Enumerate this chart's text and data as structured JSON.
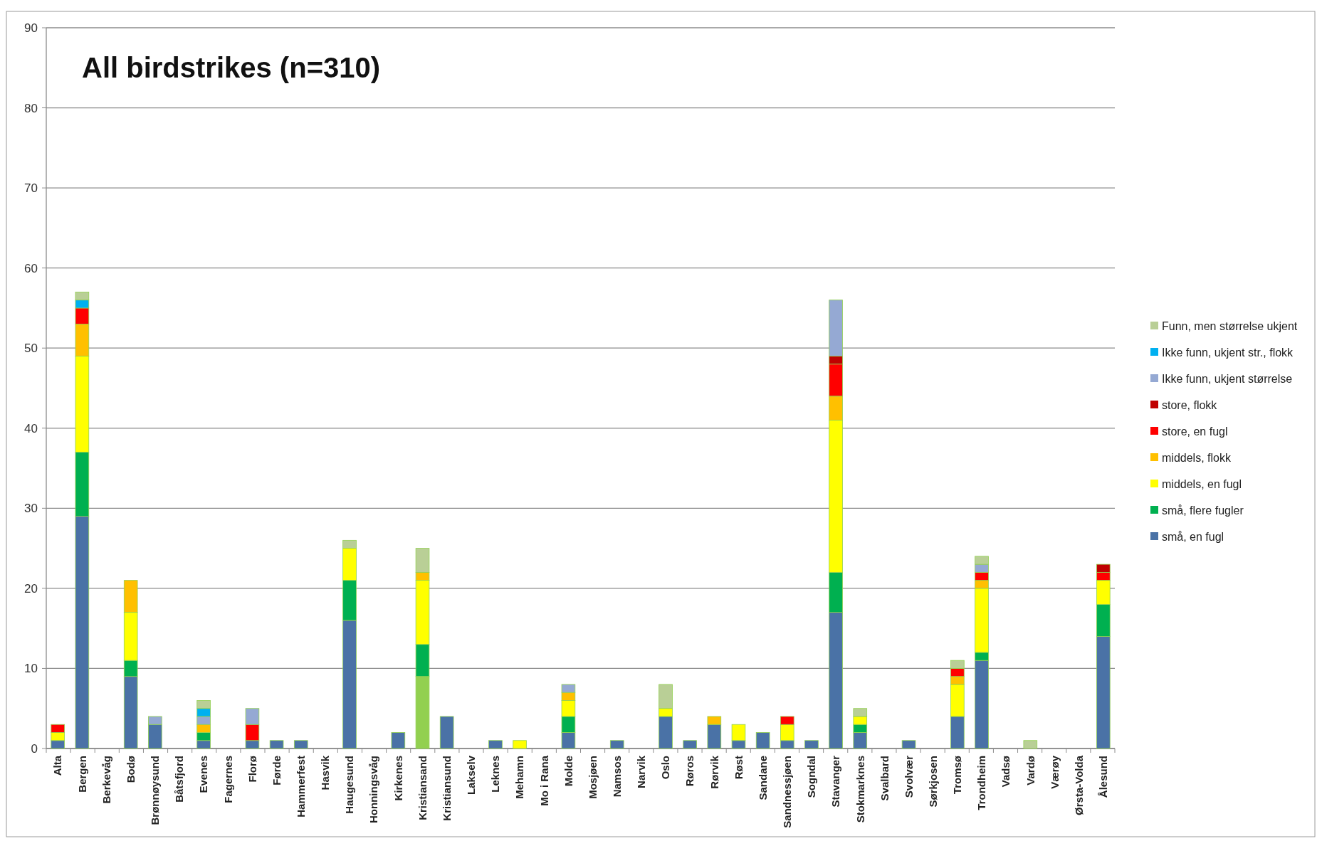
{
  "chart_data": {
    "type": "bar",
    "stacked": true,
    "title": "All birdstrikes (n=310)",
    "categories": [
      "Alta",
      "Bergen",
      "Berkevåg",
      "Bodø",
      "Brønnøysund",
      "Båtsfjord",
      "Evenes",
      "Fagernes",
      "Florø",
      "Førde",
      "Hammerfest",
      "Hasvik",
      "Haugesund",
      "Honningsvåg",
      "Kirkenes",
      "Kristiansand",
      "Kristiansund",
      "Lakselv",
      "Leknes",
      "Mehamn",
      "Mo i Rana",
      "Molde",
      "Mosjøen",
      "Namsos",
      "Narvik",
      "Oslo",
      "Røros",
      "Rørvik",
      "Røst",
      "Sandane",
      "Sandnessjøen",
      "Sogndal",
      "Stavanger",
      "Stokmarknes",
      "Svalbard",
      "Svolvær",
      "Sørkjosen",
      "Tromsø",
      "Trondheim",
      "Vadsø",
      "Vardø",
      "Værøy",
      "Ørsta-Volda",
      "Ålesund"
    ],
    "series": [
      {
        "name": "små, en fugl",
        "color": "#4a72a6",
        "colors": [
          "#4a72a6",
          "#4a72a6",
          null,
          "#4a72a6",
          "#4a72a6",
          null,
          "#4a72a6",
          null,
          "#4a72a6",
          "#4a72a6",
          "#4a72a6",
          null,
          "#4a72a6",
          null,
          "#4a72a6",
          "#92d050",
          "#4a72a6",
          null,
          "#4a72a6",
          null,
          null,
          "#4a72a6",
          null,
          "#4a72a6",
          null,
          "#4a72a6",
          "#4a72a6",
          "#4a72a6",
          "#4a72a6",
          "#4a72a6",
          "#4a72a6",
          "#4a72a6",
          "#4a72a6",
          "#4a72a6",
          null,
          "#4a72a6",
          null,
          "#4a72a6",
          "#4a72a6",
          null,
          null,
          null,
          null,
          "#4a72a6"
        ],
        "values": [
          1,
          29,
          0,
          9,
          3,
          0,
          1,
          0,
          1,
          1,
          1,
          0,
          16,
          0,
          2,
          9,
          4,
          0,
          1,
          0,
          0,
          2,
          0,
          1,
          0,
          4,
          1,
          3,
          1,
          2,
          1,
          1,
          17,
          2,
          0,
          1,
          0,
          4,
          11,
          0,
          0,
          0,
          0,
          14
        ]
      },
      {
        "name": "små, flere fugler",
        "color": "#00b050",
        "values": [
          0,
          8,
          0,
          2,
          0,
          0,
          1,
          0,
          0,
          0,
          0,
          0,
          5,
          0,
          0,
          4,
          0,
          0,
          0,
          0,
          0,
          2,
          0,
          0,
          0,
          0,
          0,
          0,
          0,
          0,
          0,
          0,
          5,
          1,
          0,
          0,
          0,
          0,
          1,
          0,
          0,
          0,
          0,
          4
        ]
      },
      {
        "name": "middels, en fugl",
        "color": "#ffff00",
        "values": [
          1,
          12,
          0,
          6,
          0,
          0,
          0,
          0,
          0,
          0,
          0,
          0,
          4,
          0,
          0,
          8,
          0,
          0,
          0,
          1,
          0,
          2,
          0,
          0,
          0,
          1,
          0,
          0,
          2,
          0,
          2,
          0,
          19,
          1,
          0,
          0,
          0,
          4,
          8,
          0,
          0,
          0,
          0,
          3
        ]
      },
      {
        "name": "middels, flokk",
        "color": "#ffc000",
        "values": [
          0,
          4,
          0,
          4,
          0,
          0,
          1,
          0,
          0,
          0,
          0,
          0,
          0,
          0,
          0,
          1,
          0,
          0,
          0,
          0,
          0,
          1,
          0,
          0,
          0,
          0,
          0,
          1,
          0,
          0,
          0,
          0,
          3,
          0,
          0,
          0,
          0,
          1,
          1,
          0,
          0,
          0,
          0,
          0
        ]
      },
      {
        "name": "store, en fugl",
        "color": "#ff0000",
        "values": [
          1,
          2,
          0,
          0,
          0,
          0,
          0,
          0,
          2,
          0,
          0,
          0,
          0,
          0,
          0,
          0,
          0,
          0,
          0,
          0,
          0,
          0,
          0,
          0,
          0,
          0,
          0,
          0,
          0,
          0,
          1,
          0,
          4,
          0,
          0,
          0,
          0,
          1,
          1,
          0,
          0,
          0,
          0,
          1
        ]
      },
      {
        "name": "store, flokk",
        "color": "#c00000",
        "values": [
          0,
          0,
          0,
          0,
          0,
          0,
          0,
          0,
          0,
          0,
          0,
          0,
          0,
          0,
          0,
          0,
          0,
          0,
          0,
          0,
          0,
          0,
          0,
          0,
          0,
          0,
          0,
          0,
          0,
          0,
          0,
          0,
          1,
          0,
          0,
          0,
          0,
          0,
          0,
          0,
          0,
          0,
          0,
          1
        ]
      },
      {
        "name": "Ikke funn, ukjent størrelse",
        "color": "#95a9d3",
        "values": [
          0,
          0,
          0,
          0,
          1,
          0,
          1,
          0,
          2,
          0,
          0,
          0,
          0,
          0,
          0,
          0,
          0,
          0,
          0,
          0,
          0,
          1,
          0,
          0,
          0,
          0,
          0,
          0,
          0,
          0,
          0,
          0,
          7,
          0,
          0,
          0,
          0,
          0,
          1,
          0,
          0,
          0,
          0,
          0
        ]
      },
      {
        "name": "Ikke funn, ukjent str., flokk",
        "color": "#00b0f0",
        "values": [
          0,
          1,
          0,
          0,
          0,
          0,
          1,
          0,
          0,
          0,
          0,
          0,
          0,
          0,
          0,
          0,
          0,
          0,
          0,
          0,
          0,
          0,
          0,
          0,
          0,
          0,
          0,
          0,
          0,
          0,
          0,
          0,
          0,
          0,
          0,
          0,
          0,
          0,
          0,
          0,
          0,
          0,
          0,
          0
        ]
      },
      {
        "name": "Funn, men størrelse ukjent",
        "color": "#b9cf96",
        "values": [
          0,
          1,
          0,
          0,
          0,
          0,
          1,
          0,
          0,
          0,
          0,
          0,
          1,
          0,
          0,
          3,
          0,
          0,
          0,
          0,
          0,
          0,
          0,
          0,
          0,
          3,
          0,
          0,
          0,
          0,
          0,
          0,
          0,
          1,
          0,
          0,
          0,
          1,
          1,
          0,
          1,
          0,
          0,
          0
        ]
      }
    ],
    "ylim": [
      0,
      90
    ],
    "yticks": [
      0,
      10,
      20,
      30,
      40,
      50,
      60,
      70,
      80,
      90
    ],
    "grid": "y",
    "legend": "right"
  }
}
